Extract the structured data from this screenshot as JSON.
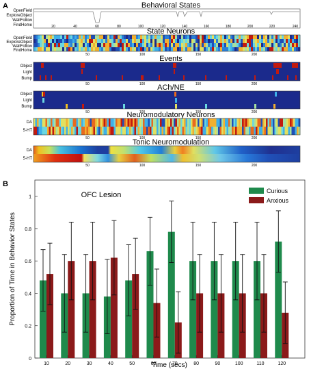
{
  "panel_a": {
    "label": "A",
    "behavior_panel": {
      "title": "Behavioral States",
      "states": [
        "OpenField",
        "ExploreObject",
        "WallFollow",
        "FindHome"
      ],
      "x_ticks": [
        "20",
        "40",
        "60",
        "80",
        "100",
        "120",
        "140",
        "160",
        "180",
        "200",
        "220",
        "240"
      ]
    },
    "heatmaps": [
      {
        "title": "State Neurons",
        "rows": [
          "OpenField",
          "ExploreObject",
          "WallFollow",
          "FindHome"
        ],
        "x_ticks": [
          "50",
          "100",
          "150",
          "200"
        ]
      },
      {
        "title": "Events",
        "rows": [
          "Object",
          "Light",
          "Bump"
        ],
        "x_ticks": [
          "50",
          "100",
          "150",
          "200"
        ]
      },
      {
        "title": "ACh/NE",
        "rows": [
          "Object",
          "Light",
          "Bump"
        ],
        "x_ticks": [
          "50",
          "100",
          "150",
          "200"
        ]
      },
      {
        "title": "Neuromodulatory Neurons",
        "rows": [
          "DA",
          "5-HT"
        ],
        "x_ticks": [
          "50",
          "100",
          "150",
          "200"
        ]
      },
      {
        "title": "Tonic Neuromodulation",
        "rows": [
          "DA",
          "5-HT"
        ],
        "x_ticks": [
          "50",
          "100",
          "150",
          "200"
        ]
      }
    ]
  },
  "panel_b": {
    "label": "B"
  },
  "colors": {
    "curious": "#1f8a4c",
    "anxious": "#8b1a1a",
    "heat_low": "#1b2a8c",
    "heat_high": "#c21a0f"
  },
  "chart_data": {
    "type": "bar",
    "title": "OFC Lesion",
    "xlabel": "Time (secs)",
    "ylabel": "Proportion of Time in Behavior States",
    "categories": [
      "10",
      "20",
      "30",
      "40",
      "50",
      "60",
      "70",
      "80",
      "90",
      "100",
      "110",
      "120"
    ],
    "ylim": [
      0,
      1.1
    ],
    "y_ticks": [
      "0",
      "0.2",
      "0.4",
      "0.6",
      "0.8",
      "1"
    ],
    "legend_position": "top-right",
    "series": [
      {
        "name": "Curious",
        "color": "#1f8a4c",
        "values": [
          0.48,
          0.4,
          0.4,
          0.38,
          0.48,
          0.66,
          0.78,
          0.6,
          0.6,
          0.6,
          0.6,
          0.72
        ],
        "error": [
          0.19,
          0.24,
          0.24,
          0.23,
          0.22,
          0.21,
          0.19,
          0.24,
          0.24,
          0.24,
          0.24,
          0.19
        ]
      },
      {
        "name": "Anxious",
        "color": "#8b1a1a",
        "values": [
          0.52,
          0.6,
          0.6,
          0.62,
          0.52,
          0.34,
          0.22,
          0.4,
          0.4,
          0.4,
          0.4,
          0.28
        ],
        "error": [
          0.19,
          0.24,
          0.24,
          0.23,
          0.22,
          0.21,
          0.19,
          0.24,
          0.24,
          0.24,
          0.24,
          0.19
        ]
      }
    ]
  }
}
